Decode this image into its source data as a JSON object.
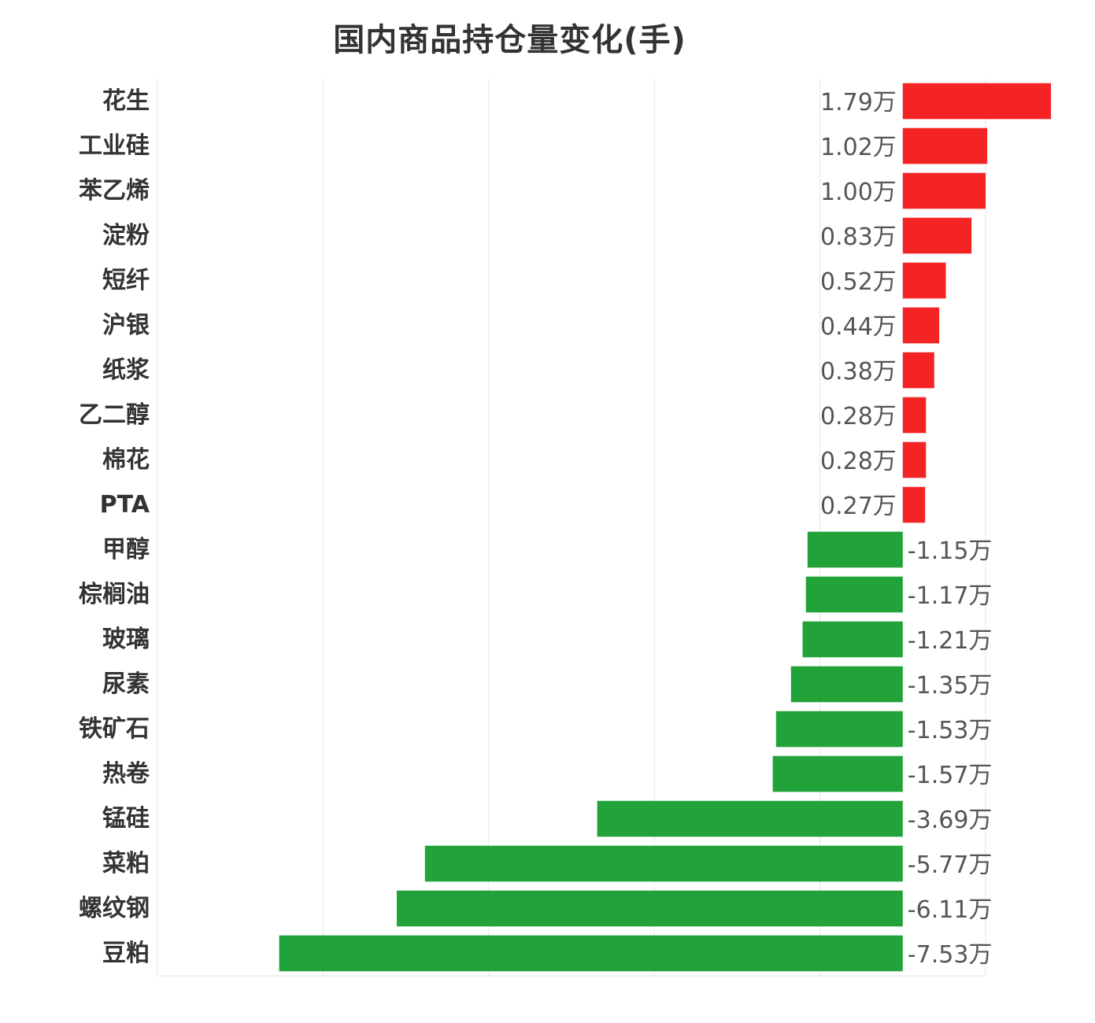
{
  "chart_data": {
    "type": "bar",
    "orientation": "horizontal",
    "title": "国内商品持仓量变化(手)",
    "xlabel": "",
    "ylabel": "",
    "unit": "万",
    "grid": true,
    "xlim": [
      -9,
      1
    ],
    "categories": [
      "花生",
      "工业硅",
      "苯乙烯",
      "淀粉",
      "短纤",
      "沪银",
      "纸浆",
      "乙二醇",
      "棉花",
      "PTA",
      "甲醇",
      "棕榈油",
      "玻璃",
      "尿素",
      "铁矿石",
      "热卷",
      "锰硅",
      "菜粕",
      "螺纹钢",
      "豆粕"
    ],
    "values": [
      1.79,
      1.02,
      1.0,
      0.83,
      0.52,
      0.44,
      0.38,
      0.28,
      0.28,
      0.27,
      -1.15,
      -1.17,
      -1.21,
      -1.35,
      -1.53,
      -1.57,
      -3.69,
      -5.77,
      -6.11,
      -7.53
    ],
    "value_labels": [
      "1.79万",
      "1.02万",
      "1.00万",
      "0.83万",
      "0.52万",
      "0.44万",
      "0.38万",
      "0.28万",
      "0.28万",
      "0.27万",
      "-1.15万",
      "-1.17万",
      "-1.21万",
      "-1.35万",
      "-1.53万",
      "-1.57万",
      "-3.69万",
      "-5.77万",
      "-6.11万",
      "-7.53万"
    ],
    "colors": {
      "positive": "#f52424",
      "negative": "#21a33a",
      "grid": "#e6e6e6"
    }
  }
}
